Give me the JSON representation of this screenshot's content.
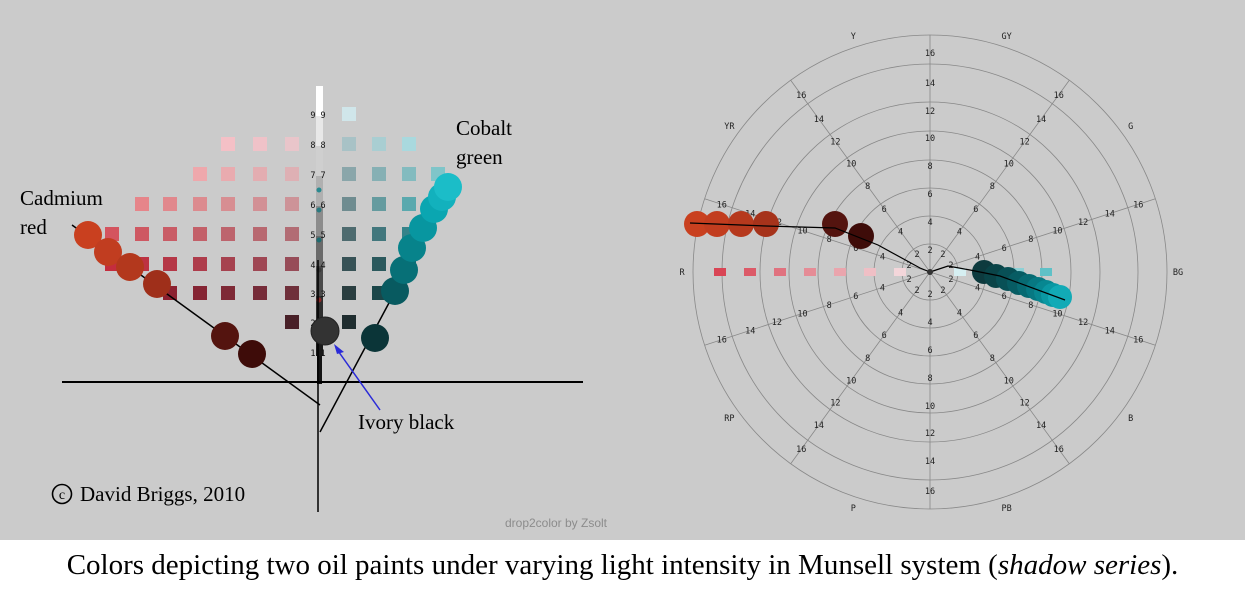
{
  "left_diagram": {
    "labels": {
      "cadmium_line1": "Cadmium",
      "cadmium_line2": "red",
      "cobalt_line1": "Cobalt",
      "cobalt_line2": "green",
      "ivory": "Ivory black",
      "copyright_symbol": "c",
      "copyright_text": "David Briggs, 2010"
    },
    "value_scale_labels": [
      "9",
      "8",
      "7",
      "6",
      "5",
      "4",
      "3",
      "2",
      "1"
    ]
  },
  "right_diagram": {
    "hue_labels": [
      "Y",
      "GY",
      "G",
      "BG",
      "B",
      "PB",
      "P",
      "RP",
      "R",
      "YR"
    ],
    "chroma_labels": [
      "2",
      "4",
      "6",
      "8",
      "10",
      "12",
      "14",
      "16"
    ],
    "watermark": "drop2color by Zsolt"
  },
  "caption": {
    "before": "Colors depicting two oil paints under varying light intensity in Munsell system (",
    "italic": "shadow series",
    "after": ")."
  },
  "colors": {
    "background": "#cbcbcb",
    "cadmium_red": "#c63a20",
    "cobalt_green": "#17b2be",
    "ivory_black": "#333333"
  }
}
